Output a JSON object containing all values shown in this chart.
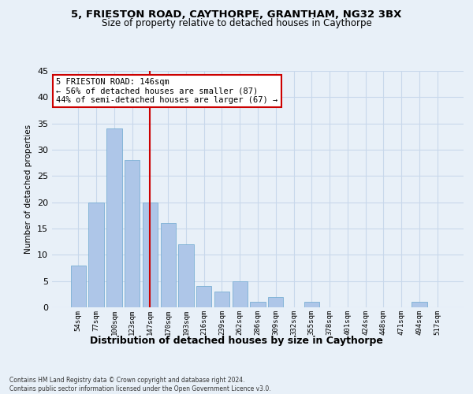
{
  "title1": "5, FRIESTON ROAD, CAYTHORPE, GRANTHAM, NG32 3BX",
  "title2": "Size of property relative to detached houses in Caythorpe",
  "xlabel": "Distribution of detached houses by size in Caythorpe",
  "ylabel": "Number of detached properties",
  "footnote": "Contains HM Land Registry data © Crown copyright and database right 2024.\nContains public sector information licensed under the Open Government Licence v3.0.",
  "categories": [
    "54sqm",
    "77sqm",
    "100sqm",
    "123sqm",
    "147sqm",
    "170sqm",
    "193sqm",
    "216sqm",
    "239sqm",
    "262sqm",
    "286sqm",
    "309sqm",
    "332sqm",
    "355sqm",
    "378sqm",
    "401sqm",
    "424sqm",
    "448sqm",
    "471sqm",
    "494sqm",
    "517sqm"
  ],
  "values": [
    8,
    20,
    34,
    28,
    20,
    16,
    12,
    4,
    3,
    5,
    1,
    2,
    0,
    1,
    0,
    0,
    0,
    0,
    0,
    1,
    0
  ],
  "bar_color": "#aec6e8",
  "bar_edge_color": "#7aafd4",
  "grid_color": "#c8d8eb",
  "background_color": "#e8f0f8",
  "redline_index": 4,
  "annotation_line1": "5 FRIESTON ROAD: 146sqm",
  "annotation_line2": "← 56% of detached houses are smaller (87)",
  "annotation_line3": "44% of semi-detached houses are larger (67) →",
  "annotation_box_color": "#ffffff",
  "annotation_box_edge": "#cc0000",
  "ylim": [
    0,
    45
  ],
  "yticks": [
    0,
    5,
    10,
    15,
    20,
    25,
    30,
    35,
    40,
    45
  ]
}
